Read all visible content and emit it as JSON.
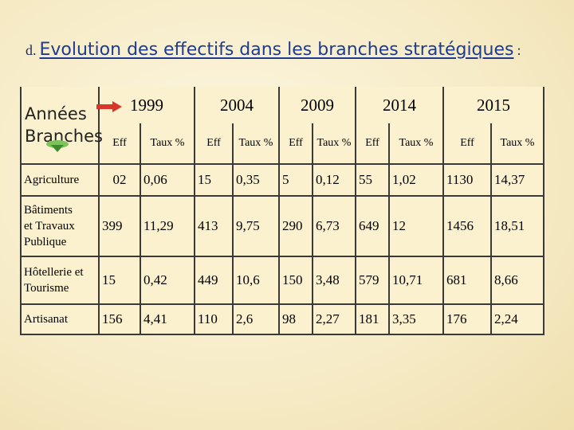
{
  "title": {
    "prefix": "d.",
    "text": "Evolution des effectifs dans les branches stratégiques",
    "suffix": ":"
  },
  "table": {
    "corner_top": "Années",
    "corner_bottom": "Branches",
    "years": [
      "1999",
      "2004",
      "2009",
      "2014",
      "2015"
    ],
    "subheaders": [
      "Eff",
      "Taux %",
      "Eff",
      "Taux %",
      "Eff",
      "Taux %",
      "Eff",
      "Taux %",
      "Eff",
      "Taux %"
    ],
    "rows": [
      {
        "branch": "Agriculture",
        "cells": [
          "02",
          "0,06",
          "15",
          "0,35",
          "5",
          "0,12",
          "55",
          "1,02",
          "1130",
          "14,37"
        ]
      },
      {
        "branch_lines": [
          "Bâtiments",
          "et Travaux",
          "Publique"
        ],
        "cells": [
          "399",
          "11,29",
          "413",
          "9,75",
          "290",
          "6,73",
          "649",
          "12",
          "1456",
          "18,51"
        ]
      },
      {
        "branch_lines": [
          "Hôtellerie et",
          "Tourisme"
        ],
        "cells": [
          "15",
          "0,42",
          "449",
          "10,6",
          "150",
          "3,48",
          "579",
          "10,71",
          "681",
          "8,66"
        ]
      },
      {
        "branch": "Artisanat",
        "cells": [
          "156",
          "4,41",
          "110",
          "2,6",
          "98",
          "2,27",
          "181",
          "3,35",
          "176",
          "2,24"
        ]
      }
    ]
  },
  "icons": {
    "arrow": "right-arrow-icon",
    "blob": "green-droplet-icon"
  },
  "colors": {
    "title": "#1f3b8f",
    "arrow": "#d9362b",
    "blob": "#4f9a3c",
    "table_bg": "#fbf1cf"
  }
}
